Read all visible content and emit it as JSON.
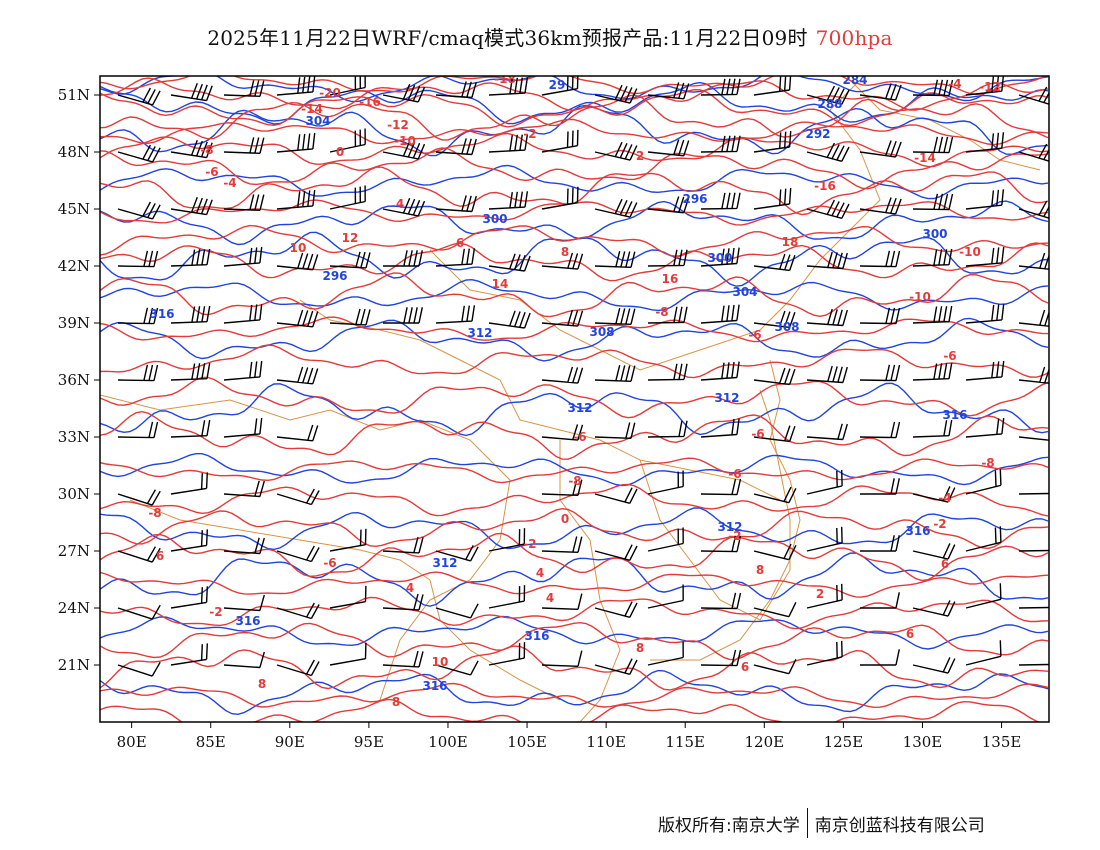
{
  "title": {
    "main": "2025年11月22日WRF/cmaq模式36km预报产品:11月22日09时",
    "level": "700hpa"
  },
  "footer": {
    "copyright": "版权所有:南京大学",
    "company": "南京创蓝科技有限公司"
  },
  "colors": {
    "temperature": "#e53a3a",
    "geopotential": "#2144e0",
    "boundaries": "#d99446",
    "barbs": "#000000"
  },
  "map": {
    "lon_range": [
      78,
      138
    ],
    "lat_range": [
      18,
      52
    ],
    "lon_ticks": [
      "80E",
      "85E",
      "90E",
      "95E",
      "100E",
      "105E",
      "110E",
      "115E",
      "120E",
      "125E",
      "130E",
      "135E"
    ],
    "lat_ticks": [
      "51N",
      "48N",
      "45N",
      "42N",
      "39N",
      "36N",
      "33N",
      "30N",
      "27N",
      "24N",
      "21N"
    ],
    "temperature_labels": [
      "-18",
      "-20",
      "-16",
      "-14",
      "-12",
      "-10",
      "-8",
      "-6",
      "-4",
      "-2",
      "0",
      "2",
      "4",
      "6",
      "8",
      "10",
      "12",
      "14",
      "16",
      "18",
      "-16",
      "-14",
      "-12",
      "-10",
      "-10",
      "-8",
      "-6",
      "-6",
      "-6",
      "-6",
      "-8",
      "-6",
      "-4",
      "-2",
      "-2",
      "0",
      "-2",
      "-6",
      "-8",
      "-8",
      "4",
      "4",
      "6",
      "8",
      "6",
      "-2",
      "2",
      "8",
      "10",
      "8",
      "6",
      "6",
      "8",
      "4",
      "-4"
    ],
    "geopotential_labels": [
      "284",
      "288",
      "292",
      "296",
      "300",
      "300",
      "304",
      "308",
      "308",
      "312",
      "312",
      "312",
      "312",
      "316",
      "316",
      "316",
      "316",
      "312",
      "316",
      "316",
      "296",
      "300",
      "304",
      "29"
    ]
  },
  "chart_data": {
    "type": "map",
    "variables": [
      "temperature (°C, red contours)",
      "geopotential height (dagpm, blue contours)",
      "wind barbs (black)"
    ],
    "temperature_contours": [
      -20,
      -18,
      -16,
      -14,
      -12,
      -10,
      -8,
      -6,
      -4,
      -2,
      0,
      2,
      4,
      6,
      8,
      10,
      12,
      14,
      16,
      18
    ],
    "height_contours": [
      284,
      288,
      292,
      296,
      300,
      304,
      308,
      312,
      316
    ]
  }
}
